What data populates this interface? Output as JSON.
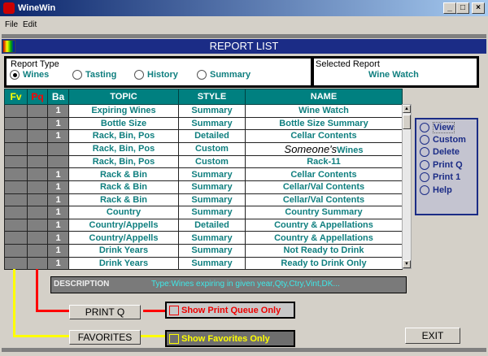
{
  "window": {
    "title": "WineWin",
    "min": "_",
    "max": "□",
    "close": "×"
  },
  "menu": [
    "File",
    "Edit"
  ],
  "header": {
    "title": "REPORT LIST"
  },
  "report_type": {
    "label": "Report Type",
    "options": [
      "Wines",
      "Tasting",
      "History",
      "Summary"
    ],
    "selected": "Wines"
  },
  "selected_report": {
    "label": "Selected Report",
    "value": "Wine Watch"
  },
  "table": {
    "columns": [
      "Fv",
      "Pq",
      "Ba",
      "TOPIC",
      "STYLE",
      "NAME"
    ],
    "rows": [
      {
        "ba": "1",
        "topic": "Expiring Wines",
        "style": "Summary",
        "name": "Wine Watch"
      },
      {
        "ba": "1",
        "topic": "Bottle Size",
        "style": "Summary",
        "name": "Bottle Size Summary"
      },
      {
        "ba": "1",
        "topic": "Rack, Bin, Pos",
        "style": "Detailed",
        "name": "Cellar Contents"
      },
      {
        "ba": "",
        "topic": "Rack, Bin, Pos",
        "style": "Custom",
        "name": "Wines",
        "overlay": "Someone's"
      },
      {
        "ba": "",
        "topic": "Rack, Bin, Pos",
        "style": "Custom",
        "name": "Rack-11"
      },
      {
        "ba": "1",
        "topic": "Rack & Bin",
        "style": "Summary",
        "name": "Cellar Contents"
      },
      {
        "ba": "1",
        "topic": "Rack & Bin",
        "style": "Summary",
        "name": "Cellar/Val Contents"
      },
      {
        "ba": "1",
        "topic": "Rack & Bin",
        "style": "Summary",
        "name": "Cellar/Val Contents"
      },
      {
        "ba": "1",
        "topic": "Country",
        "style": "Summary",
        "name": "Country Summary"
      },
      {
        "ba": "1",
        "topic": "Country/Appells",
        "style": "Detailed",
        "name": "Country & Appellations"
      },
      {
        "ba": "1",
        "topic": "Country/Appells",
        "style": "Summary",
        "name": "Country & Appellations"
      },
      {
        "ba": "1",
        "topic": "Drink Years",
        "style": "Summary",
        "name": "Not Ready to Drink"
      },
      {
        "ba": "1",
        "topic": "Drink Years",
        "style": "Summary",
        "name": "Ready to Drink Only"
      }
    ]
  },
  "actions": [
    "View",
    "Custom",
    "Delete",
    "Print Q",
    "Print 1",
    "Help"
  ],
  "description": {
    "label": "DESCRIPTION",
    "value": "Type:Wines expiring in given year,Qty,Ctry,Vint,DK..."
  },
  "print_q": {
    "button": "PRINT Q",
    "checkbox": "Show Print Queue Only",
    "checked": false
  },
  "favorites": {
    "button": "FAVORITES",
    "checkbox": "Show Favorites Only",
    "checked": false
  },
  "exit": "EXIT",
  "colors": {
    "teal": "#008080",
    "fv": "#ffff00",
    "pq": "#ff0000",
    "header_blue": "#1b2c86"
  }
}
